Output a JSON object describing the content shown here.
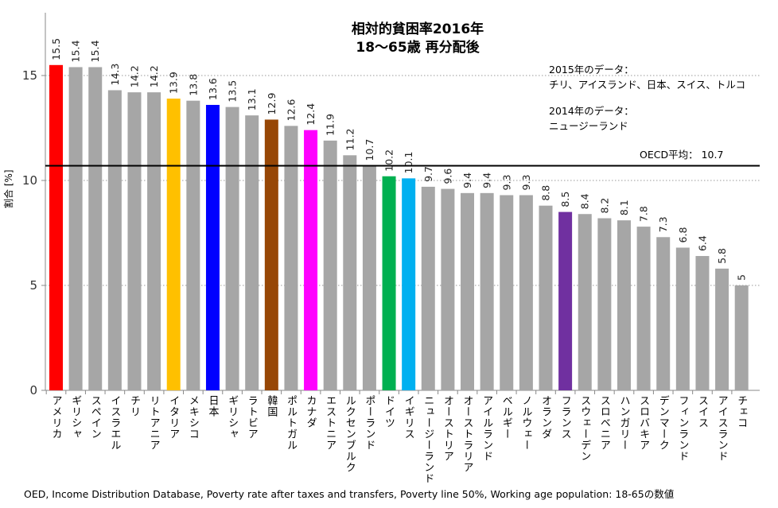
{
  "chart_data": {
    "type": "bar",
    "title": "相対的貧困率2016年",
    "subtitle": "18～65歳 再分配後",
    "ylabel": "割合 [%]",
    "xlabel": "",
    "ylim": [
      0,
      18
    ],
    "yticks": [
      0,
      5,
      10,
      15
    ],
    "grid": "dotted horizontal",
    "categories": [
      "アメリカ",
      "ギリシャ",
      "スペイン",
      "イスラエル",
      "チリ",
      "リトアニア",
      "イタリア",
      "メキシコ",
      "日本",
      "ギリシャ",
      "ラトビア",
      "韓国",
      "ポルトガル",
      "カナダ",
      "エストニア",
      "ルクセンブルク",
      "ポーランド",
      "ドイツ",
      "イギリス",
      "ニュージーランド",
      "オーストリア",
      "オーストラリア",
      "アイルランド",
      "ベルギー",
      "ノルウェー",
      "オランダ",
      "フランス",
      "スウェーデン",
      "スロベニア",
      "ハンガリー",
      "スロバキア",
      "デンマーク",
      "フィンランド",
      "スイス",
      "アイスランド",
      "チェコ"
    ],
    "values": [
      15.5,
      15.4,
      15.4,
      14.3,
      14.2,
      14.2,
      13.9,
      13.8,
      13.6,
      13.5,
      13.1,
      12.9,
      12.6,
      12.4,
      11.9,
      11.2,
      10.7,
      10.2,
      10.1,
      9.7,
      9.6,
      9.4,
      9.4,
      9.3,
      9.3,
      8.8,
      8.5,
      8.4,
      8.2,
      8.1,
      7.8,
      7.3,
      6.8,
      6.4,
      5.8,
      5
    ],
    "value_labels": [
      "15.5",
      "15.4",
      "15.4",
      "14.3",
      "14.2",
      "14.2",
      "13.9",
      "13.8",
      "13.6",
      "13.5",
      "13.1",
      "12.9",
      "12.6",
      "12.4",
      "11.9",
      "11.2",
      "10.7",
      "10.2",
      "10.1",
      "9.7",
      "9.6",
      "9.4",
      "9.4",
      "9.3",
      "9.3",
      "8.8",
      "8.5",
      "8.4",
      "8.2",
      "8.1",
      "7.8",
      "7.3",
      "6.8",
      "6.4",
      "5.8",
      "5"
    ],
    "default_color": "#a6a6a6",
    "highlight_colors": {
      "0": "#ff0000",
      "6": "#ffc000",
      "8": "#0000ff",
      "11": "#974706",
      "13": "#ff00ff",
      "17": "#00b050",
      "18": "#00b0f0",
      "26": "#7030a0"
    },
    "reference_line": {
      "value": 10.7,
      "label": "OECD平均： 10.7",
      "color": "#000000"
    },
    "annotations": [
      "2015年のデータ：",
      "チリ、アイスランド、日本、スイス、トルコ",
      "2014年のデータ：",
      "ニュージーランド"
    ],
    "source": "OED, Income Distribution Database, Poverty rate after taxes and transfers, Poverty line 50%, Working age population: 18-65の数値"
  }
}
